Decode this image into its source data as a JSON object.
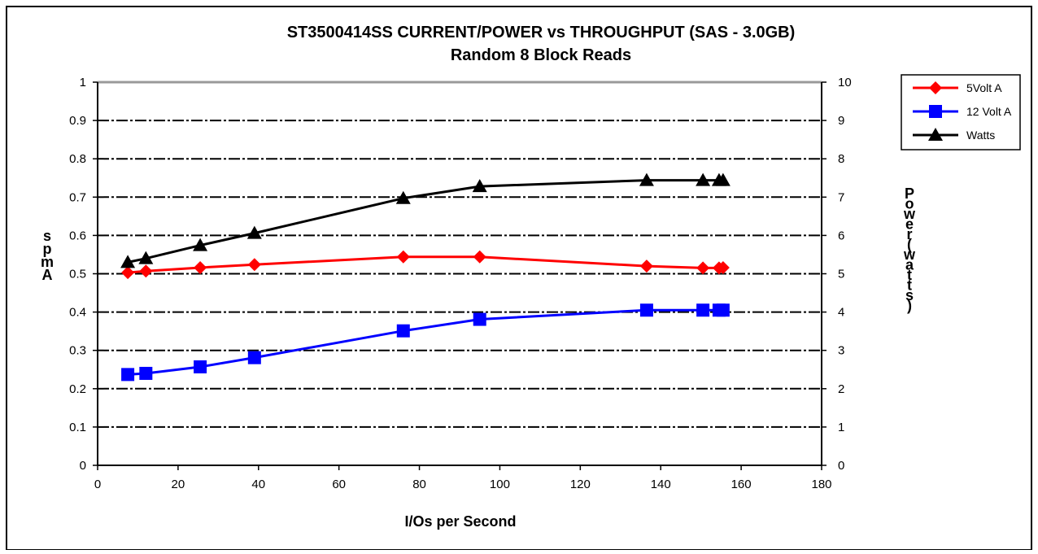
{
  "chart_data": {
    "type": "line",
    "title": "ST3500414SS CURRENT/POWER vs THROUGHPUT (SAS - 3.0GB)",
    "subtitle": "Random 8 Block Reads",
    "xlabel": "I/Os per Second",
    "ylabel": "Amps",
    "y2label": "Power (watts)",
    "xlim": [
      0,
      180
    ],
    "ylim": [
      0,
      1
    ],
    "y2lim": [
      0,
      10
    ],
    "x_ticks": [
      "0",
      "20",
      "40",
      "60",
      "80",
      "100",
      "120",
      "140",
      "160",
      "180"
    ],
    "y_ticks": [
      "0",
      "0.1",
      "0.2",
      "0.3",
      "0.4",
      "0.5",
      "0.6",
      "0.7",
      "0.8",
      "0.9",
      "1"
    ],
    "y2_ticks": [
      "0",
      "1",
      "2",
      "3",
      "4",
      "5",
      "6",
      "7",
      "8",
      "9",
      "10"
    ],
    "grid": true,
    "legend_position": "top-right",
    "series": [
      {
        "name": "5Volt A",
        "axis": "left",
        "color": "#ff0000",
        "marker": "diamond",
        "x": [
          7.5,
          12,
          25.5,
          39,
          76,
          95,
          136.5,
          150.5,
          154.5,
          155.5
        ],
        "y": [
          0.503,
          0.507,
          0.516,
          0.524,
          0.544,
          0.544,
          0.52,
          0.515,
          0.515,
          0.516
        ]
      },
      {
        "name": "12 Volt A",
        "axis": "left",
        "color": "#0000ff",
        "marker": "square",
        "x": [
          7.5,
          12,
          25.5,
          39,
          76,
          95,
          136.5,
          150.5,
          154.5,
          155.5
        ],
        "y": [
          0.237,
          0.24,
          0.257,
          0.281,
          0.351,
          0.381,
          0.405,
          0.405,
          0.405,
          0.405
        ]
      },
      {
        "name": "Watts",
        "axis": "right",
        "color": "#000000",
        "marker": "triangle",
        "x": [
          7.5,
          12,
          25.5,
          39,
          76,
          95,
          136.5,
          150.5,
          154.5,
          155.5
        ],
        "y": [
          5.3,
          5.4,
          5.74,
          6.06,
          6.97,
          7.28,
          7.44,
          7.44,
          7.44,
          7.44
        ]
      }
    ]
  }
}
